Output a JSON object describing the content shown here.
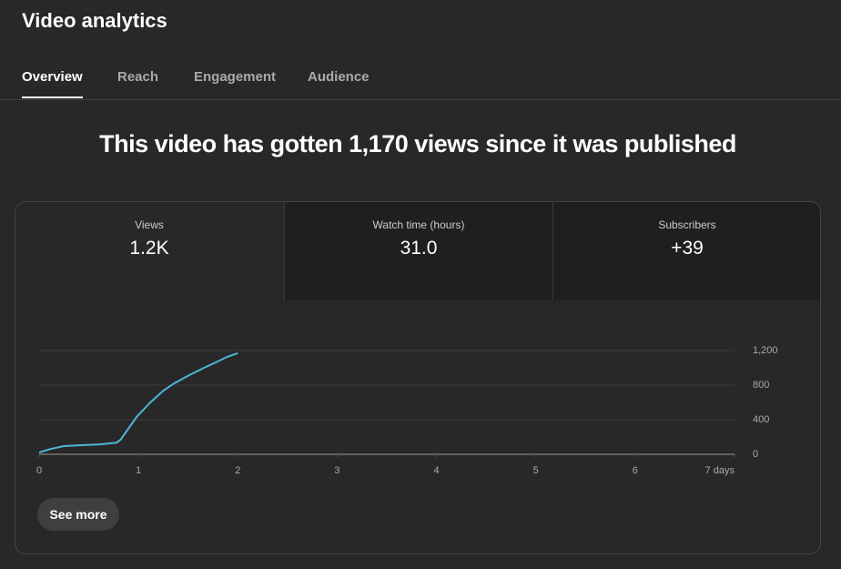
{
  "header": {
    "title": "Video analytics"
  },
  "tabs": [
    {
      "label": "Overview",
      "selected": true
    },
    {
      "label": "Reach",
      "selected": false
    },
    {
      "label": "Engagement",
      "selected": false
    },
    {
      "label": "Audience",
      "selected": false
    }
  ],
  "headline": "This video has gotten 1,170 views since it was published",
  "metrics": [
    {
      "label": "Views",
      "value": "1.2K",
      "selected": true
    },
    {
      "label": "Watch time (hours)",
      "value": "31.0",
      "selected": false
    },
    {
      "label": "Subscribers",
      "value": "+39",
      "selected": false
    }
  ],
  "chart_data": {
    "type": "line",
    "x": [
      0,
      0.11,
      0.25,
      0.43,
      0.61,
      0.7,
      0.78,
      0.82,
      0.98,
      1.12,
      1.25,
      1.36,
      1.51,
      1.66,
      1.8,
      1.89,
      2.0
    ],
    "values": [
      20,
      60,
      95,
      105,
      115,
      125,
      135,
      170,
      430,
      600,
      735,
      820,
      915,
      1000,
      1075,
      1125,
      1170
    ],
    "color": "#4cb8d8",
    "xlim": [
      0,
      7
    ],
    "xticks": [
      0,
      1,
      2,
      3,
      4,
      5,
      6,
      {
        "value": 7,
        "label": "7 days"
      }
    ],
    "ylim": [
      0,
      1200
    ],
    "yticks": [
      0,
      400,
      800,
      {
        "value": 1200,
        "label": "1,200"
      }
    ],
    "grid": true
  },
  "button": {
    "label": "See more"
  }
}
